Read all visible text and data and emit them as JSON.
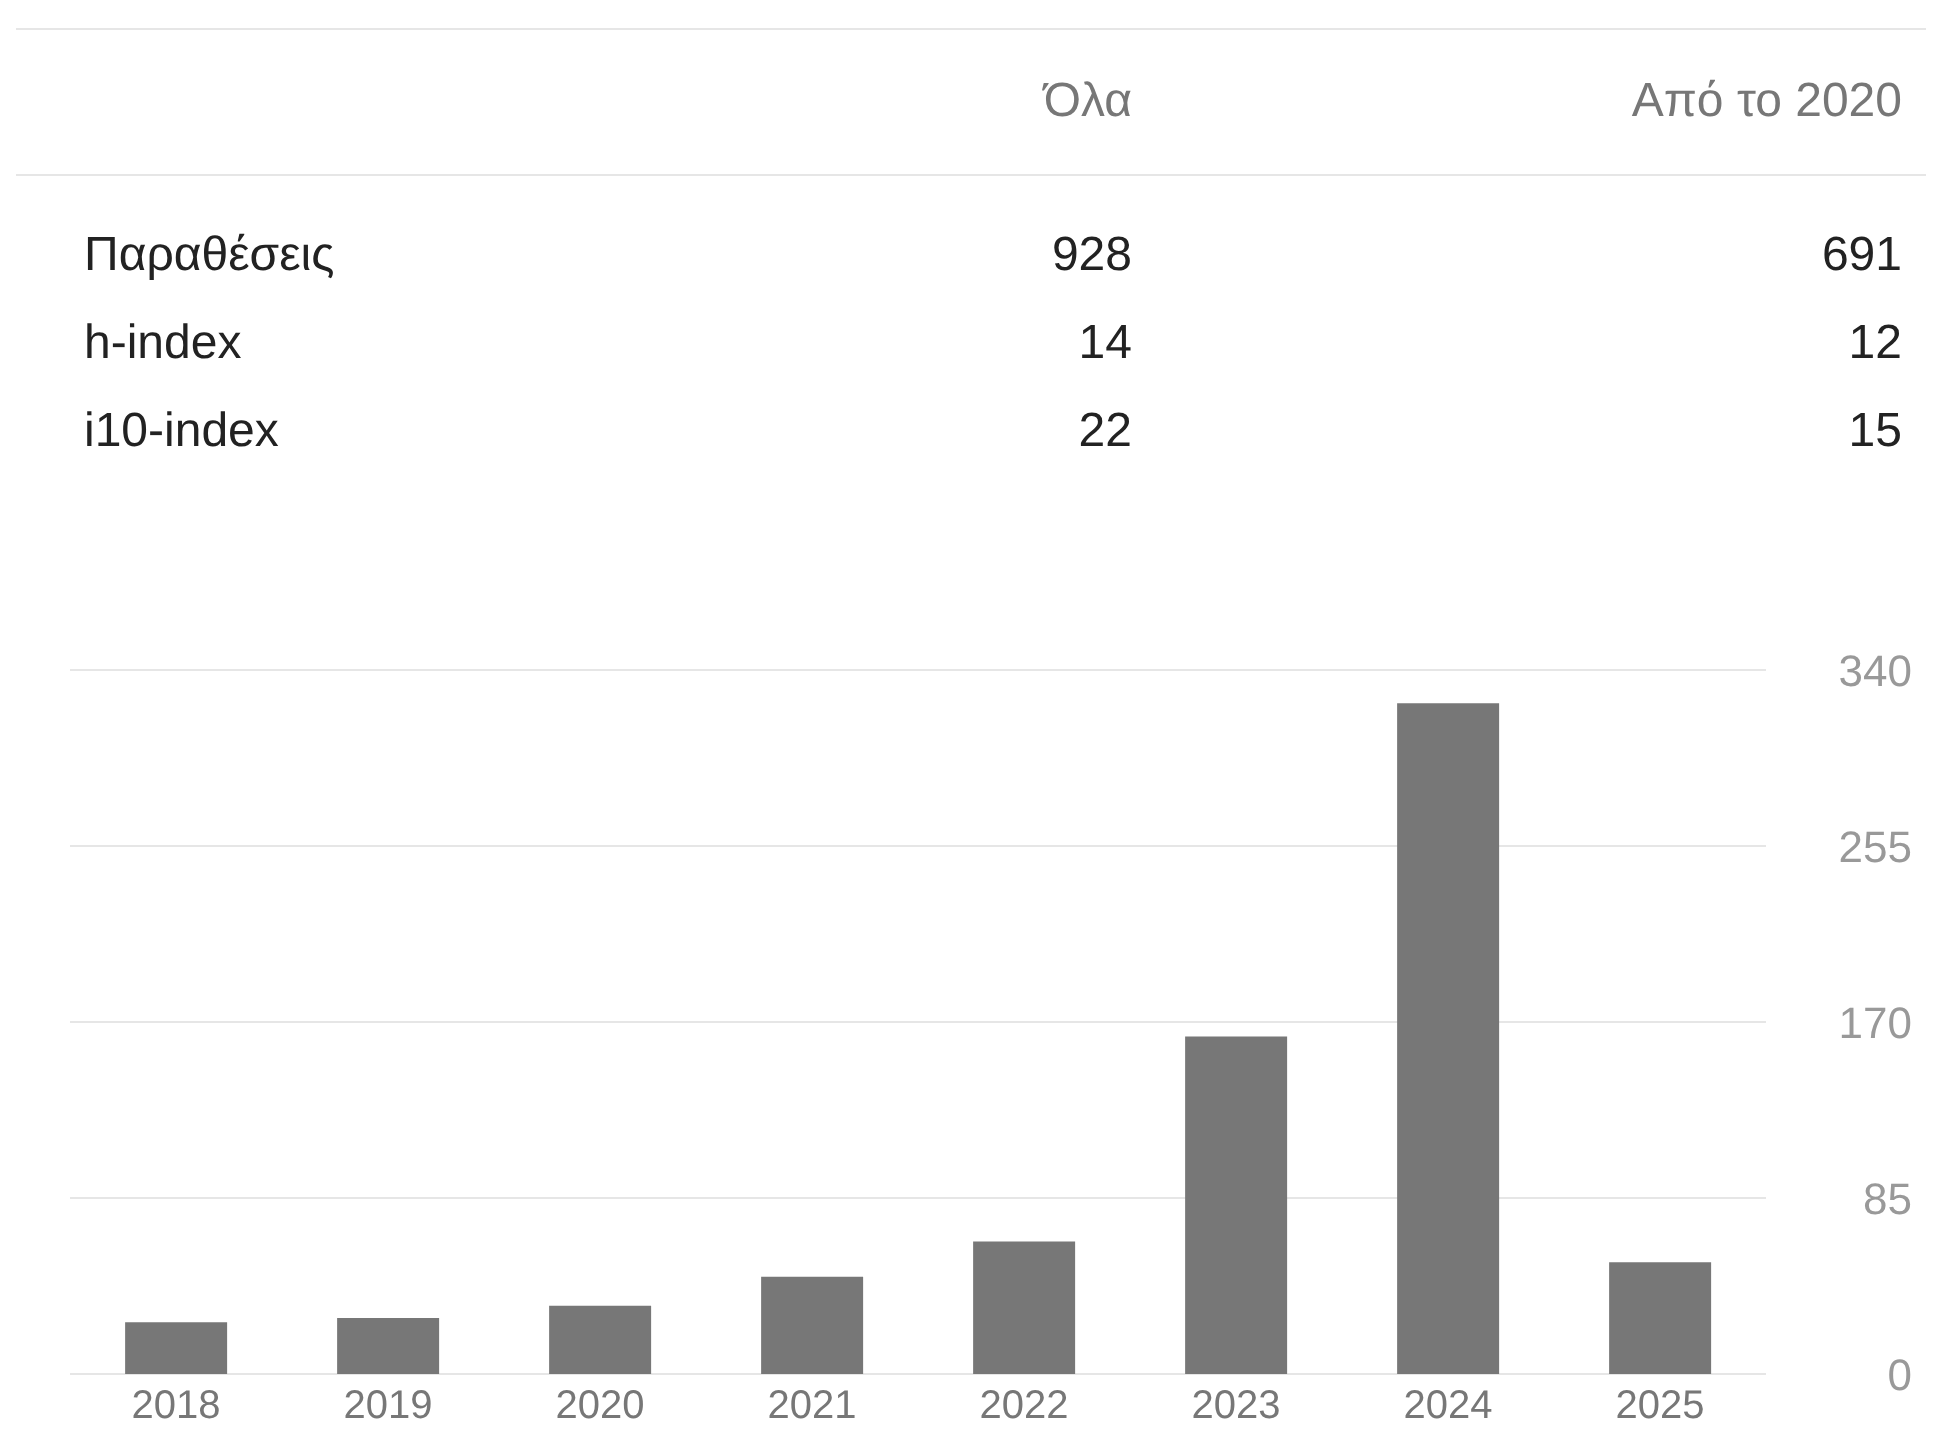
{
  "chart_data": [
    {
      "type": "other",
      "annotations": [
        "Όλα",
        "Από το 2020",
        "Παραθέσεις",
        "928",
        "691",
        "h-index",
        "14",
        "12",
        "i10-index",
        "22",
        "15"
      ]
    },
    {
      "type": "bar",
      "categories": [
        "2018",
        "2019",
        "2020",
        "2021",
        "2022",
        "2023",
        "2024",
        "2025"
      ],
      "values": [
        25,
        27,
        33,
        47,
        64,
        163,
        324,
        54
      ],
      "color": "#777777",
      "ylim": [
        0,
        340
      ],
      "yticks": [
        0,
        85,
        170,
        255,
        340
      ],
      "grid": "y"
    }
  ]
}
